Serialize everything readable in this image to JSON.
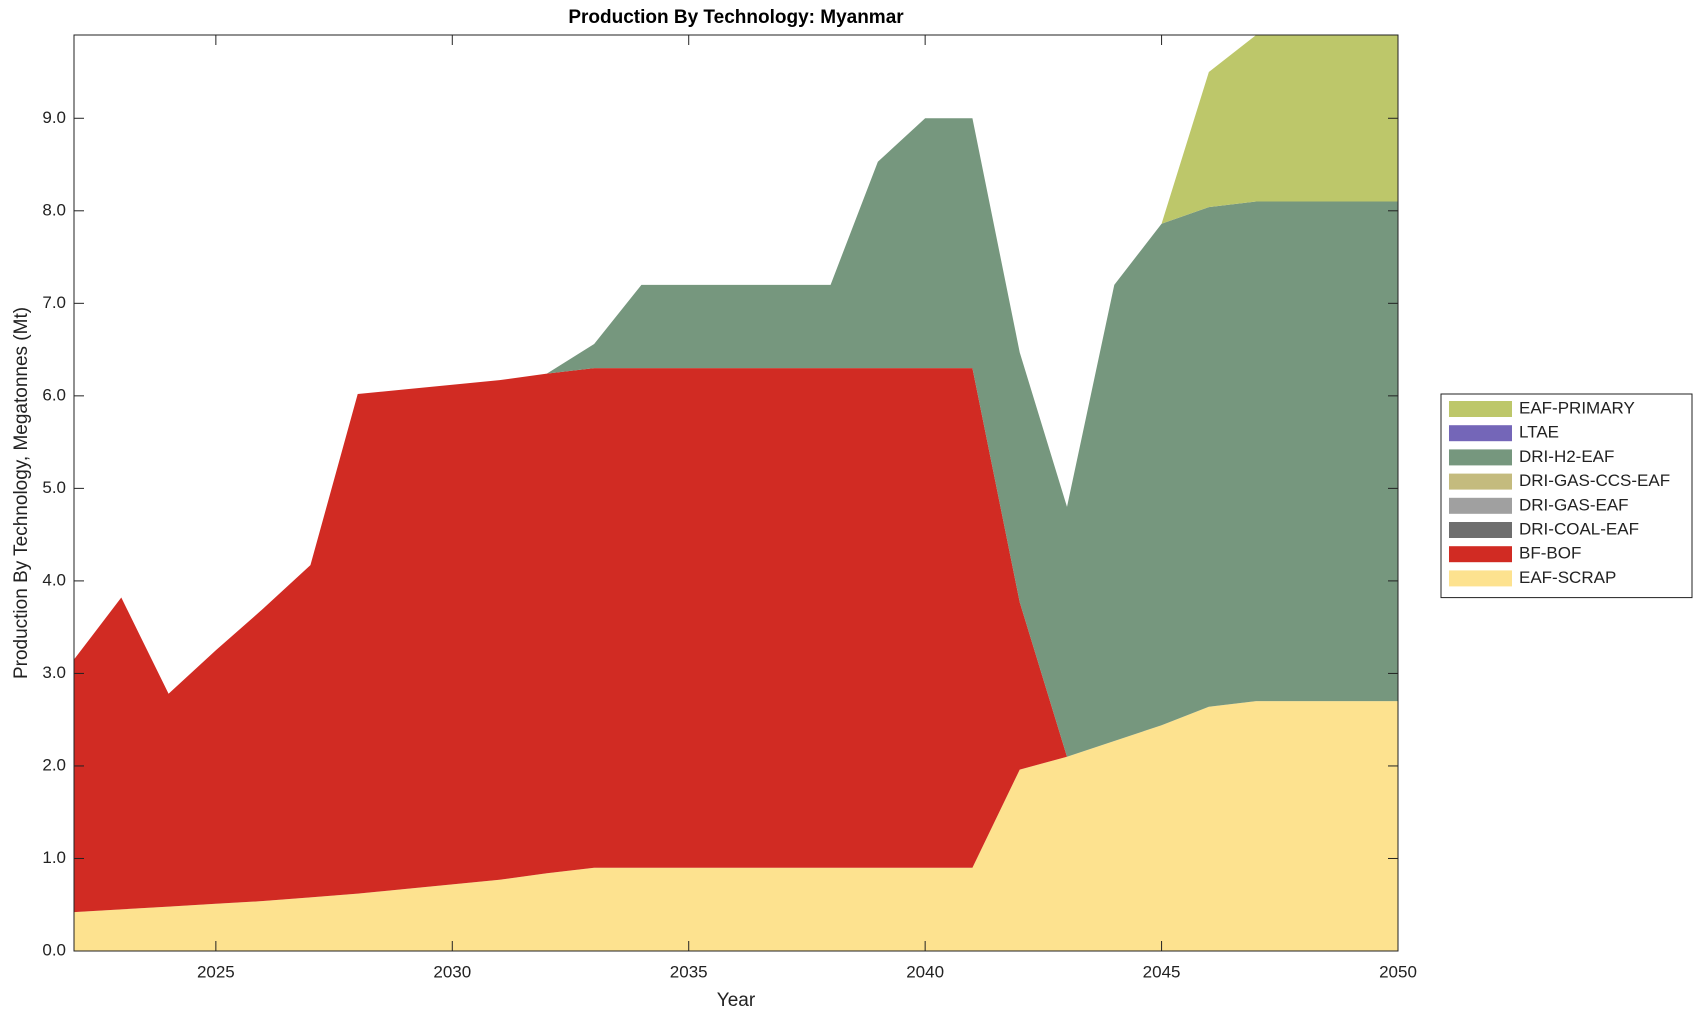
{
  "chart_data": {
    "type": "area",
    "title": "Production By Technology: Myanmar",
    "xlabel": "Year",
    "ylabel": "Production By Technology, Megatonnes (Mt)",
    "x": [
      2022,
      2023,
      2024,
      2025,
      2026,
      2027,
      2028,
      2029,
      2030,
      2031,
      2032,
      2033,
      2034,
      2035,
      2036,
      2037,
      2038,
      2039,
      2040,
      2041,
      2042,
      2043,
      2044,
      2045,
      2046,
      2047,
      2048,
      2049,
      2050
    ],
    "xlim": [
      2022,
      2050
    ],
    "xticks": [
      2025,
      2030,
      2035,
      2040,
      2045,
      2050
    ],
    "ylim": [
      0,
      9.9
    ],
    "yticks": [
      {
        "value": 0,
        "label": "0.0"
      },
      {
        "value": 1,
        "label": "1.0"
      },
      {
        "value": 2,
        "label": "2.0"
      },
      {
        "value": 3,
        "label": "3.0"
      },
      {
        "value": 4,
        "label": "4.0"
      },
      {
        "value": 5,
        "label": "5.0"
      },
      {
        "value": 6,
        "label": "6.0"
      },
      {
        "value": 7,
        "label": "7.0"
      },
      {
        "value": 8,
        "label": "8.0"
      },
      {
        "value": 9,
        "label": "9.0"
      }
    ],
    "stacked": true,
    "legend": "right",
    "series": [
      {
        "name": "EAF-SCRAP",
        "color": "#fde28f",
        "values": [
          0.42,
          0.45,
          0.48,
          0.51,
          0.54,
          0.58,
          0.62,
          0.67,
          0.72,
          0.77,
          0.84,
          0.9,
          0.9,
          0.9,
          0.9,
          0.9,
          0.9,
          0.9,
          0.9,
          0.9,
          1.96,
          2.1,
          2.27,
          2.44,
          2.64,
          2.7,
          2.7,
          2.7,
          2.7
        ]
      },
      {
        "name": "BF-BOF",
        "color": "#d12b23",
        "values": [
          2.73,
          3.37,
          2.3,
          2.74,
          3.16,
          3.59,
          5.4,
          5.4,
          5.4,
          5.4,
          5.4,
          5.4,
          5.4,
          5.4,
          5.4,
          5.4,
          5.4,
          5.4,
          5.4,
          5.4,
          1.81,
          0,
          0,
          0,
          0,
          0,
          0,
          0,
          0
        ]
      },
      {
        "name": "DRI-COAL-EAF",
        "color": "#6e6e6e",
        "values": [
          0,
          0,
          0,
          0,
          0,
          0,
          0,
          0,
          0,
          0,
          0,
          0,
          0,
          0,
          0,
          0,
          0,
          0,
          0,
          0,
          0,
          0,
          0,
          0,
          0,
          0,
          0,
          0,
          0
        ]
      },
      {
        "name": "DRI-GAS-EAF",
        "color": "#a0a0a0",
        "values": [
          0,
          0,
          0,
          0,
          0,
          0,
          0,
          0,
          0,
          0,
          0,
          0,
          0,
          0,
          0,
          0,
          0,
          0,
          0,
          0,
          0,
          0,
          0,
          0,
          0,
          0,
          0,
          0,
          0
        ]
      },
      {
        "name": "DRI-GAS-CCS-EAF",
        "color": "#c4bb7e",
        "values": [
          0,
          0,
          0,
          0,
          0,
          0,
          0,
          0,
          0,
          0,
          0,
          0,
          0,
          0,
          0,
          0,
          0,
          0,
          0,
          0,
          0,
          0,
          0,
          0,
          0,
          0,
          0,
          0,
          0
        ]
      },
      {
        "name": "DRI-H2-EAF",
        "color": "#76977e",
        "values": [
          0,
          0,
          0,
          0,
          0,
          0,
          0,
          0,
          0,
          0,
          0,
          0.26,
          0.9,
          0.9,
          0.9,
          0.9,
          0.9,
          2.23,
          2.7,
          2.7,
          2.7,
          2.7,
          4.93,
          5.42,
          5.4,
          5.4,
          5.4,
          5.4,
          5.4
        ]
      },
      {
        "name": "LTAE",
        "color": "#7466b8",
        "values": [
          0,
          0,
          0,
          0,
          0,
          0,
          0,
          0,
          0,
          0,
          0,
          0,
          0,
          0,
          0,
          0,
          0,
          0,
          0,
          0,
          0,
          0,
          0,
          0,
          0,
          0,
          0,
          0,
          0
        ]
      },
      {
        "name": "EAF-PRIMARY",
        "color": "#bdc76a",
        "values": [
          0,
          0,
          0,
          0,
          0,
          0,
          0,
          0,
          0,
          0,
          0,
          0,
          0,
          0,
          0,
          0,
          0,
          0,
          0,
          0,
          0,
          0,
          0,
          0,
          1.46,
          1.8,
          1.8,
          1.8,
          1.8
        ]
      }
    ]
  }
}
